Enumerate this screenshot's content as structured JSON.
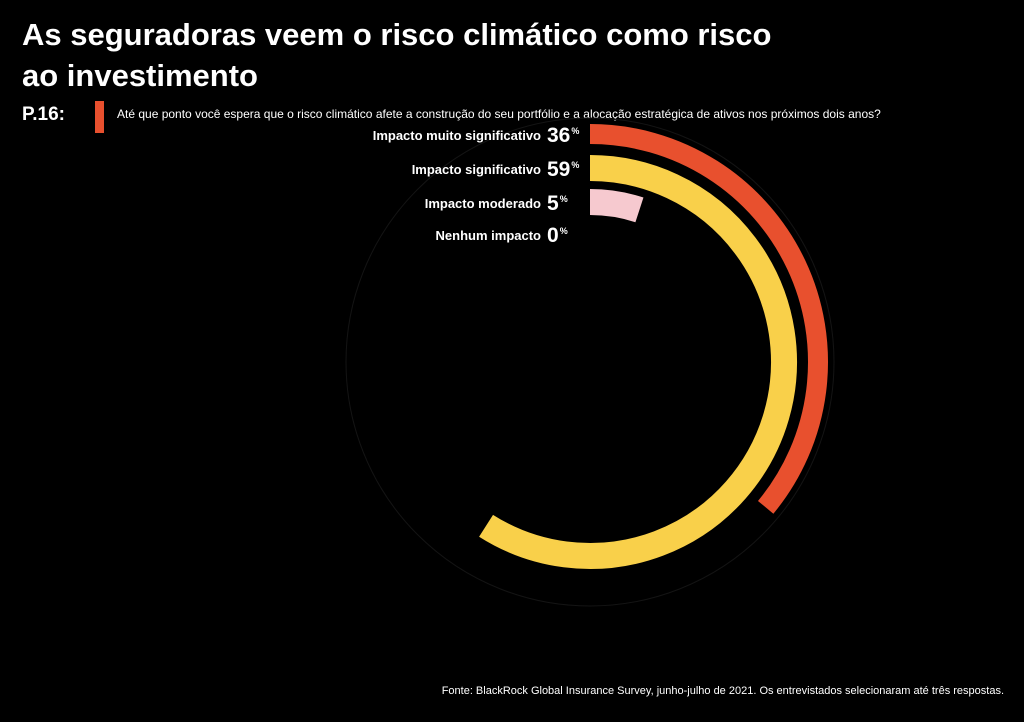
{
  "header": {
    "title": "As seguradoras veem o risco climático como risco ao investimento",
    "question_label": "P.16:",
    "question_text": "Até que ponto você espera que o risco climático afete a construção do seu portfólio e a alocação estratégica de ativos nos próximos dois anos?",
    "accent_color": "#e8502e"
  },
  "footer": {
    "source": "Fonte: BlackRock Global Insurance Survey, junho-julho de 2021. Os entrevistados selecionaram até três respostas."
  },
  "chart_data": {
    "type": "radial-bar",
    "unit": "%",
    "max": 100,
    "categories": [
      "Impacto muito significativo",
      "Impacto significativo",
      "Impacto moderado",
      "Nenhum impacto"
    ],
    "values": [
      36,
      59,
      5,
      0
    ],
    "colors": [
      "#e8502e",
      "#f9d04a",
      "#f6c9cf",
      "#ffffff"
    ]
  }
}
